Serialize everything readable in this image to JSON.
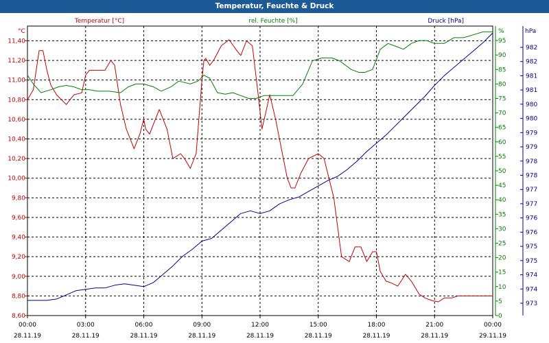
{
  "window": {
    "title": "Temperatur, Feuchte & Druck"
  },
  "colors": {
    "temperature": "#c00000",
    "humidity": "#008000",
    "pressure": "#00008b",
    "titlebar": "#1c5a96",
    "text": "#000000",
    "grid": "#000000"
  },
  "chart_data": {
    "type": "line",
    "title": "Temperatur, Feuchte & Druck",
    "grid": true,
    "x_tick_labels": [
      {
        "time": "00:00",
        "date": "28.11.19"
      },
      {
        "time": "03:00",
        "date": "28.11.19"
      },
      {
        "time": "06:00",
        "date": "28.11.19"
      },
      {
        "time": "09:00",
        "date": "28.11.19"
      },
      {
        "time": "12:00",
        "date": "28.11.19"
      },
      {
        "time": "15:00",
        "date": "28.11.19"
      },
      {
        "time": "18:00",
        "date": "28.11.19"
      },
      {
        "time": "21:00",
        "date": "28.11.19"
      },
      {
        "time": "00:00",
        "date": "29.11.19"
      }
    ],
    "xlim": [
      "28.11.19 00:00",
      "29.11.19 00:00"
    ],
    "axes": {
      "temperature": {
        "label": "Temperatur [°C]",
        "unit": "°C",
        "side": "left",
        "range": [
          8.6,
          11.55
        ],
        "ticks": [
          "8,60",
          "8,80",
          "9,00",
          "9,20",
          "9,40",
          "9,60",
          "9,80",
          "10,00",
          "10,20",
          "10,40",
          "10,60",
          "10,80",
          "11,00",
          "11,20",
          "11,40"
        ]
      },
      "humidity": {
        "label": "rel. Feuchte [%]",
        "unit": "%",
        "side": "right",
        "range": [
          0,
          100
        ],
        "ticks": [
          "0",
          "5",
          "10",
          "15",
          "20",
          "25",
          "30",
          "35",
          "40",
          "45",
          "50",
          "55",
          "60",
          "65",
          "70",
          "75",
          "80",
          "85",
          "90",
          "95"
        ]
      },
      "pressure": {
        "label": "Druck [hPa]",
        "unit": "hPa",
        "side": "right",
        "range": [
          972.5,
          983
        ],
        "ticks": [
          "973",
          "974",
          "974",
          "975",
          "975",
          "976",
          "976",
          "977",
          "977",
          "978",
          "978",
          "979",
          "979",
          "980",
          "980",
          "981",
          "981",
          "982",
          "982"
        ]
      }
    },
    "series": [
      {
        "name": "Temperatur [°C]",
        "axis": "temperature",
        "x": [
          "00:00",
          "00:18",
          "00:36",
          "00:48",
          "01:00",
          "01:12",
          "01:30",
          "02:00",
          "02:24",
          "02:48",
          "03:00",
          "03:12",
          "03:36",
          "04:00",
          "04:18",
          "04:30",
          "04:48",
          "05:06",
          "05:30",
          "05:48",
          "06:00",
          "06:06",
          "06:18",
          "06:30",
          "06:48",
          "07:12",
          "07:30",
          "07:54",
          "08:06",
          "08:24",
          "08:42",
          "09:00",
          "09:06",
          "09:12",
          "09:24",
          "09:36",
          "10:00",
          "10:24",
          "10:48",
          "11:00",
          "11:18",
          "11:36",
          "11:54",
          "12:06",
          "12:30",
          "12:48",
          "13:12",
          "13:24",
          "13:36",
          "13:48",
          "14:06",
          "14:30",
          "15:00",
          "15:18",
          "15:48",
          "16:12",
          "16:36",
          "16:54",
          "17:12",
          "17:30",
          "17:48",
          "18:00",
          "18:12",
          "18:30",
          "18:48",
          "19:06",
          "19:30",
          "19:48",
          "20:12",
          "20:30",
          "20:54",
          "21:12",
          "21:30",
          "21:54",
          "22:12",
          "22:30",
          "22:54",
          "23:12",
          "23:48",
          "24:00"
        ],
        "y": [
          10.8,
          10.9,
          11.3,
          11.3,
          11.1,
          10.95,
          10.85,
          10.75,
          10.85,
          10.87,
          11.05,
          11.1,
          11.1,
          11.1,
          11.2,
          11.15,
          10.75,
          10.5,
          10.3,
          10.45,
          10.6,
          10.5,
          10.45,
          10.55,
          10.7,
          10.5,
          10.2,
          10.25,
          10.2,
          10.1,
          10.25,
          11.0,
          11.2,
          11.22,
          11.15,
          11.2,
          11.35,
          11.41,
          11.3,
          11.25,
          11.4,
          11.35,
          10.85,
          10.5,
          10.85,
          10.6,
          10.2,
          10.0,
          9.9,
          9.9,
          10.05,
          10.2,
          10.25,
          10.2,
          9.8,
          9.2,
          9.15,
          9.3,
          9.3,
          9.15,
          9.25,
          9.25,
          9.05,
          8.95,
          8.93,
          8.9,
          9.02,
          8.95,
          8.82,
          8.78,
          8.75,
          8.74,
          8.78,
          8.78,
          8.8,
          8.8,
          8.8,
          8.8,
          8.8,
          8.8
        ]
      },
      {
        "name": "rel. Feuchte [%]",
        "axis": "humidity",
        "x": [
          "00:00",
          "00:18",
          "00:42",
          "01:12",
          "01:36",
          "02:00",
          "02:24",
          "02:48",
          "03:12",
          "03:36",
          "04:12",
          "04:48",
          "05:12",
          "05:36",
          "06:00",
          "06:30",
          "06:54",
          "07:24",
          "07:48",
          "08:24",
          "08:48",
          "09:06",
          "09:24",
          "09:48",
          "10:12",
          "10:36",
          "11:00",
          "11:24",
          "11:48",
          "12:12",
          "12:36",
          "13:00",
          "13:18",
          "13:42",
          "14:12",
          "14:42",
          "15:12",
          "15:42",
          "16:06",
          "16:42",
          "17:06",
          "17:24",
          "17:48",
          "18:12",
          "18:36",
          "19:00",
          "19:24",
          "19:48",
          "20:12",
          "20:36",
          "21:00",
          "21:30",
          "22:00",
          "22:30",
          "23:00",
          "23:30",
          "24:00"
        ],
        "y": [
          83,
          80,
          77,
          78,
          79,
          79.5,
          79,
          78,
          78,
          77.5,
          77.5,
          77,
          79,
          80,
          80,
          79,
          77.5,
          79,
          81,
          80,
          81,
          83,
          82,
          77,
          76.5,
          77,
          76,
          75,
          75,
          76,
          76,
          76,
          76,
          76,
          80,
          88,
          89,
          89,
          88,
          85,
          84,
          84,
          85,
          92,
          94,
          93,
          92,
          94,
          95,
          95,
          94,
          94,
          96,
          96,
          97,
          98,
          98
        ]
      },
      {
        "name": "Druck [hPa]",
        "axis": "pressure",
        "x": [
          "00:00",
          "00:30",
          "01:00",
          "01:30",
          "02:00",
          "02:30",
          "03:00",
          "03:30",
          "04:00",
          "04:30",
          "05:00",
          "05:30",
          "06:00",
          "06:30",
          "07:00",
          "07:30",
          "08:00",
          "08:30",
          "09:00",
          "09:30",
          "10:00",
          "10:30",
          "11:00",
          "11:30",
          "12:00",
          "12:30",
          "13:00",
          "13:30",
          "14:00",
          "14:30",
          "15:00",
          "15:30",
          "16:00",
          "16:30",
          "17:00",
          "17:30",
          "18:00",
          "18:30",
          "19:00",
          "19:30",
          "20:00",
          "20:30",
          "21:00",
          "21:30",
          "22:00",
          "22:30",
          "23:00",
          "23:30",
          "24:00"
        ],
        "y": [
          973.05,
          973.05,
          973.05,
          973.1,
          973.25,
          973.4,
          973.45,
          973.5,
          973.5,
          973.6,
          973.65,
          973.6,
          973.55,
          973.7,
          974.0,
          974.3,
          974.65,
          974.9,
          975.2,
          975.3,
          975.6,
          975.9,
          976.2,
          976.3,
          976.2,
          976.3,
          976.55,
          976.7,
          976.8,
          977.0,
          977.2,
          977.4,
          977.55,
          977.8,
          978.1,
          978.45,
          978.75,
          979.05,
          979.4,
          979.75,
          980.1,
          980.45,
          980.85,
          981.2,
          981.5,
          981.8,
          982.1,
          982.4,
          982.75
        ]
      }
    ]
  }
}
